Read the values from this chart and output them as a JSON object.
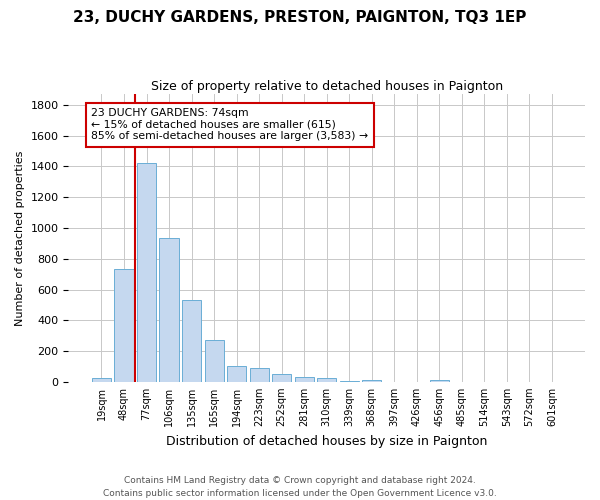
{
  "title1": "23, DUCHY GARDENS, PRESTON, PAIGNTON, TQ3 1EP",
  "title2": "Size of property relative to detached houses in Paignton",
  "xlabel": "Distribution of detached houses by size in Paignton",
  "ylabel": "Number of detached properties",
  "footer1": "Contains HM Land Registry data © Crown copyright and database right 2024.",
  "footer2": "Contains public sector information licensed under the Open Government Licence v3.0.",
  "categories": [
    "19sqm",
    "48sqm",
    "77sqm",
    "106sqm",
    "135sqm",
    "165sqm",
    "194sqm",
    "223sqm",
    "252sqm",
    "281sqm",
    "310sqm",
    "339sqm",
    "368sqm",
    "397sqm",
    "426sqm",
    "456sqm",
    "485sqm",
    "514sqm",
    "543sqm",
    "572sqm",
    "601sqm"
  ],
  "values": [
    22,
    735,
    1425,
    935,
    530,
    270,
    104,
    92,
    48,
    30,
    25,
    5,
    14,
    0,
    0,
    12,
    0,
    0,
    0,
    0,
    0
  ],
  "bar_color": "#c5d8ef",
  "bar_edge_color": "#6aaed6",
  "background_color": "#ffffff",
  "grid_color": "#c8c8c8",
  "vline_x": 1.5,
  "vline_color": "#cc0000",
  "annotation_line1": "23 DUCHY GARDENS: 74sqm",
  "annotation_line2": "← 15% of detached houses are smaller (615)",
  "annotation_line3": "85% of semi-detached houses are larger (3,583) →",
  "annotation_box_color": "#cc0000",
  "annotation_box_bg": "#ffffff",
  "ylim": [
    0,
    1870
  ],
  "yticks": [
    0,
    200,
    400,
    600,
    800,
    1000,
    1200,
    1400,
    1600,
    1800
  ],
  "title1_fontsize": 11,
  "title2_fontsize": 9,
  "xlabel_fontsize": 9,
  "ylabel_fontsize": 8,
  "footer_fontsize": 6.5
}
